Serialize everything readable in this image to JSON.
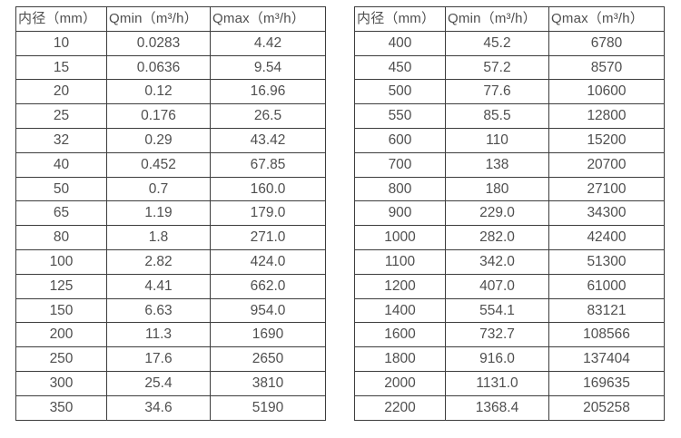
{
  "colors": {
    "background": "#ffffff",
    "table_border": "#3d3d3d",
    "text": "#4f4f4f"
  },
  "tables": [
    {
      "name": "small-diameter-flow-table",
      "headers": [
        "内径（mm）",
        "Qmin（m³/h）",
        "Qmax（m³/h）"
      ],
      "rows": [
        [
          "10",
          "0.0283",
          "4.42"
        ],
        [
          "15",
          "0.0636",
          "9.54"
        ],
        [
          "20",
          "0.12",
          "16.96"
        ],
        [
          "25",
          "0.176",
          "26.5"
        ],
        [
          "32",
          "0.29",
          "43.42"
        ],
        [
          "40",
          "0.452",
          "67.85"
        ],
        [
          "50",
          "0.7",
          "160.0"
        ],
        [
          "65",
          "1.19",
          "179.0"
        ],
        [
          "80",
          "1.8",
          "271.0"
        ],
        [
          "100",
          "2.82",
          "424.0"
        ],
        [
          "125",
          "4.41",
          "662.0"
        ],
        [
          "150",
          "6.63",
          "954.0"
        ],
        [
          "200",
          "11.3",
          "1690"
        ],
        [
          "250",
          "17.6",
          "2650"
        ],
        [
          "300",
          "25.4",
          "3810"
        ],
        [
          "350",
          "34.6",
          "5190"
        ]
      ]
    },
    {
      "name": "large-diameter-flow-table",
      "headers": [
        "内径（mm）",
        "Qmin（m³/h）",
        "Qmax（m³/h）"
      ],
      "rows": [
        [
          "400",
          "45.2",
          "6780"
        ],
        [
          "450",
          "57.2",
          "8570"
        ],
        [
          "500",
          "77.6",
          "10600"
        ],
        [
          "550",
          "85.5",
          "12800"
        ],
        [
          "600",
          "110",
          "15200"
        ],
        [
          "700",
          "138",
          "20700"
        ],
        [
          "800",
          "180",
          "27100"
        ],
        [
          "900",
          "229.0",
          "34300"
        ],
        [
          "1000",
          "282.0",
          "42400"
        ],
        [
          "1100",
          "342.0",
          "51300"
        ],
        [
          "1200",
          "407.0",
          "61000"
        ],
        [
          "1400",
          "554.1",
          "83121"
        ],
        [
          "1600",
          "732.7",
          "108566"
        ],
        [
          "1800",
          "916.0",
          "137404"
        ],
        [
          "2000",
          "1131.0",
          "169635"
        ],
        [
          "2200",
          "1368.4",
          "205258"
        ]
      ]
    }
  ],
  "chart_data": [
    {
      "type": "table",
      "title": "",
      "columns": [
        "内径（mm）",
        "Qmin（m³/h）",
        "Qmax（m³/h）"
      ],
      "rows": [
        [
          10,
          0.0283,
          4.42
        ],
        [
          15,
          0.0636,
          9.54
        ],
        [
          20,
          0.12,
          16.96
        ],
        [
          25,
          0.176,
          26.5
        ],
        [
          32,
          0.29,
          43.42
        ],
        [
          40,
          0.452,
          67.85
        ],
        [
          50,
          0.7,
          160.0
        ],
        [
          65,
          1.19,
          179.0
        ],
        [
          80,
          1.8,
          271.0
        ],
        [
          100,
          2.82,
          424.0
        ],
        [
          125,
          4.41,
          662.0
        ],
        [
          150,
          6.63,
          954.0
        ],
        [
          200,
          11.3,
          1690
        ],
        [
          250,
          17.6,
          2650
        ],
        [
          300,
          25.4,
          3810
        ],
        [
          350,
          34.6,
          5190
        ]
      ]
    },
    {
      "type": "table",
      "title": "",
      "columns": [
        "内径（mm）",
        "Qmin（m³/h）",
        "Qmax（m³/h）"
      ],
      "rows": [
        [
          400,
          45.2,
          6780
        ],
        [
          450,
          57.2,
          8570
        ],
        [
          500,
          77.6,
          10600
        ],
        [
          550,
          85.5,
          12800
        ],
        [
          600,
          110,
          15200
        ],
        [
          700,
          138,
          20700
        ],
        [
          800,
          180,
          27100
        ],
        [
          900,
          229.0,
          34300
        ],
        [
          1000,
          282.0,
          42400
        ],
        [
          1100,
          342.0,
          51300
        ],
        [
          1200,
          407.0,
          61000
        ],
        [
          1400,
          554.1,
          83121
        ],
        [
          1600,
          732.7,
          108566
        ],
        [
          1800,
          916.0,
          137404
        ],
        [
          2000,
          1131.0,
          169635
        ],
        [
          2200,
          1368.4,
          205258
        ]
      ]
    }
  ]
}
